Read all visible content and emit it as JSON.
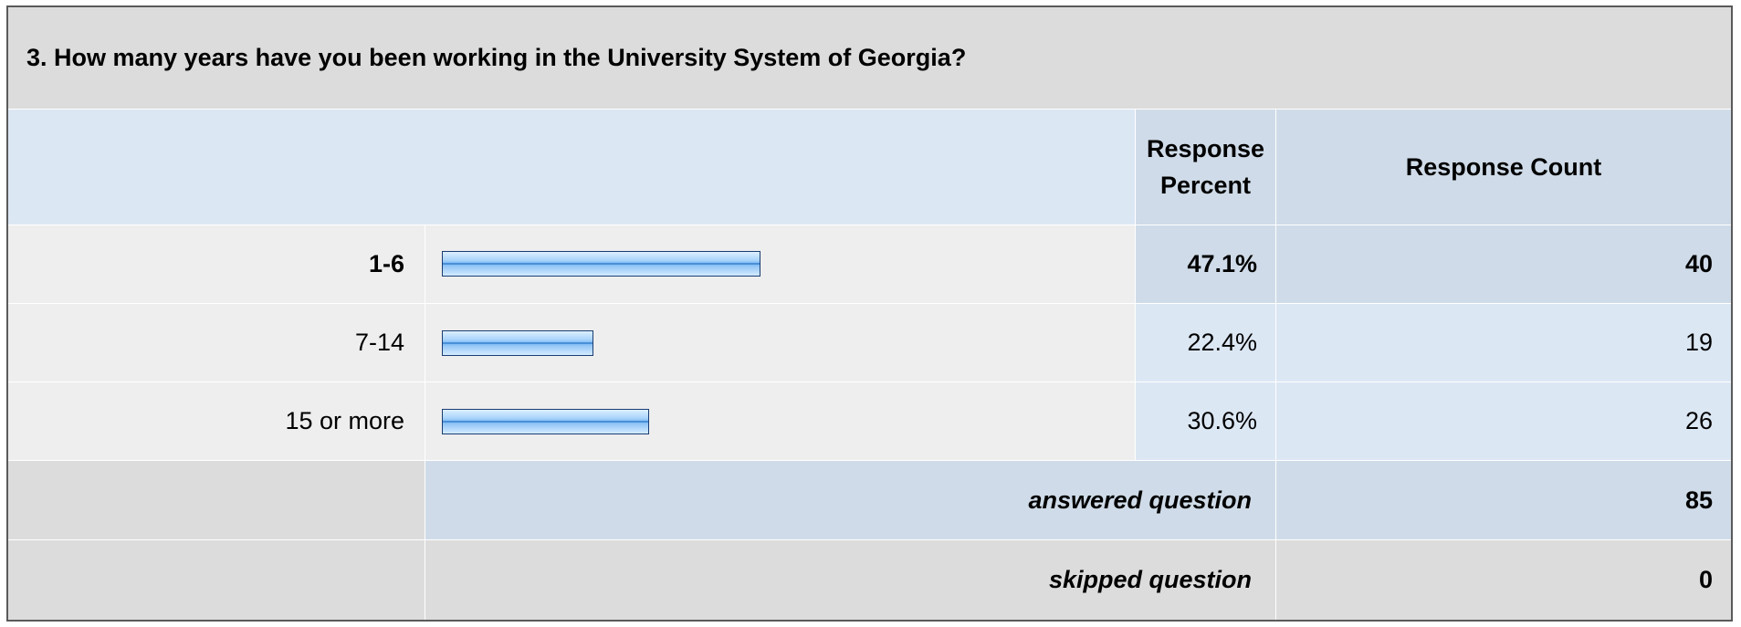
{
  "question": {
    "title": "3. How many years have you been working in the University System of Georgia?"
  },
  "headers": {
    "response_percent": "Response Percent",
    "response_count": "Response Count"
  },
  "rows": [
    {
      "label": "1-6",
      "percent_text": "47.1%",
      "count_text": "40",
      "emphasis": true
    },
    {
      "label": "7-14",
      "percent_text": "22.4%",
      "count_text": "19",
      "emphasis": false
    },
    {
      "label": "15 or more",
      "percent_text": "30.6%",
      "count_text": "26",
      "emphasis": false
    }
  ],
  "summary": {
    "answered_label": "answered question",
    "answered_value": "85",
    "skipped_label": "skipped question",
    "skipped_value": "0"
  },
  "chart_data": {
    "type": "bar",
    "orientation": "horizontal",
    "title": "3. How many years have you been working in the University System of Georgia?",
    "categories": [
      "1-6",
      "7-14",
      "15 or more"
    ],
    "values": [
      47.1,
      22.4,
      30.6
    ],
    "counts": [
      40,
      19,
      26
    ],
    "unit": "%",
    "bar_scale_max": 100
  },
  "colors": {
    "bar_fill": "#8fc4f5",
    "bar_border": "#1a3d73",
    "header_bg": "#cfdbe8",
    "light_blue_bg": "#dce7f4",
    "gray_bg": "#dcdcdc",
    "row_bg": "#eeeeee"
  }
}
